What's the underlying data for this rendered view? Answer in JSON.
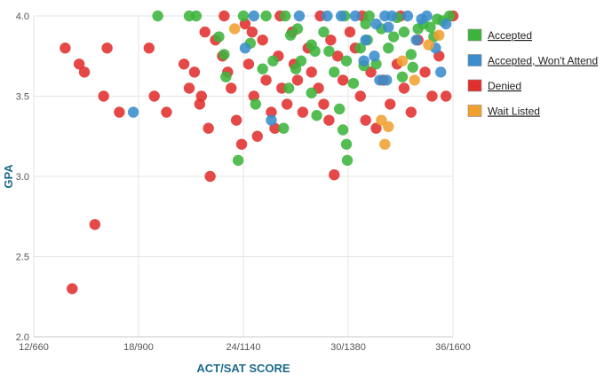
{
  "chart_data": {
    "type": "scatter",
    "xlabel": "ACT/SAT SCORE",
    "ylabel": "GPA",
    "xlim": [
      12,
      36
    ],
    "ylim": [
      2.0,
      4.0
    ],
    "x_ticks": [
      12,
      18,
      24,
      30,
      36
    ],
    "x_tick_labels": [
      "12/660",
      "18/900",
      "24/1140",
      "30/1380",
      "36/1600"
    ],
    "y_ticks": [
      2.0,
      2.5,
      3.0,
      3.5,
      4.0
    ],
    "y_tick_labels": [
      "2.0",
      "2.5",
      "3.0",
      "3.5",
      "4.0"
    ],
    "grid": true,
    "legend_position": "right",
    "series": [
      {
        "name": "Accepted",
        "color": "#3cb43c",
        "points": [
          [
            19.1,
            4.0
          ],
          [
            20.9,
            4.0
          ],
          [
            21.3,
            4.0
          ],
          [
            22.6,
            3.87
          ],
          [
            23.0,
            3.62
          ],
          [
            22.9,
            3.76
          ],
          [
            23.7,
            3.1
          ],
          [
            24.7,
            3.45
          ],
          [
            24.0,
            4.0
          ],
          [
            25.3,
            4.0
          ],
          [
            26.4,
            4.0
          ],
          [
            26.7,
            3.88
          ],
          [
            26.6,
            3.55
          ],
          [
            27.0,
            3.67
          ],
          [
            27.3,
            3.72
          ],
          [
            27.9,
            3.82
          ],
          [
            28.1,
            3.78
          ],
          [
            28.6,
            3.9
          ],
          [
            29.2,
            3.65
          ],
          [
            29.5,
            3.42
          ],
          [
            29.9,
            3.72
          ],
          [
            30.3,
            3.58
          ],
          [
            29.7,
            3.29
          ],
          [
            29.9,
            3.2
          ],
          [
            29.95,
            3.1
          ],
          [
            30.7,
            3.8
          ],
          [
            31.0,
            3.95
          ],
          [
            31.1,
            3.85
          ],
          [
            31.6,
            3.7
          ],
          [
            31.9,
            3.92
          ],
          [
            32.3,
            3.8
          ],
          [
            32.6,
            3.87
          ],
          [
            33.2,
            3.9
          ],
          [
            33.6,
            3.76
          ],
          [
            33.7,
            3.68
          ],
          [
            34.0,
            3.92
          ],
          [
            34.3,
            3.95
          ],
          [
            34.9,
            3.87
          ],
          [
            35.4,
            3.97
          ],
          [
            35.8,
            4.0
          ],
          [
            25.7,
            3.72
          ],
          [
            26.3,
            3.3
          ],
          [
            27.9,
            3.52
          ],
          [
            28.2,
            3.38
          ],
          [
            28.9,
            3.78
          ],
          [
            27.1,
            3.92
          ],
          [
            29.8,
            4.0
          ],
          [
            31.2,
            4.0
          ],
          [
            32.8,
            3.99
          ],
          [
            35.1,
            3.98
          ],
          [
            34.7,
            3.93
          ],
          [
            33.1,
            3.62
          ],
          [
            30.9,
            3.69
          ],
          [
            25.1,
            3.67
          ],
          [
            24.4,
            3.83
          ]
        ]
      },
      {
        "name": "Accepted, Won't Attend",
        "color": "#3a8ccc",
        "points": [
          [
            17.7,
            3.4
          ],
          [
            24.1,
            3.8
          ],
          [
            24.6,
            4.0
          ],
          [
            25.6,
            3.35
          ],
          [
            27.2,
            4.0
          ],
          [
            28.8,
            4.0
          ],
          [
            30.4,
            4.0
          ],
          [
            31.0,
            3.85
          ],
          [
            31.5,
            3.75
          ],
          [
            31.8,
            3.6
          ],
          [
            32.1,
            4.0
          ],
          [
            32.3,
            3.93
          ],
          [
            32.5,
            4.0
          ],
          [
            33.4,
            4.0
          ],
          [
            33.9,
            3.85
          ],
          [
            34.5,
            4.0
          ],
          [
            35.0,
            3.8
          ],
          [
            35.3,
            3.65
          ],
          [
            35.6,
            3.95
          ],
          [
            31.6,
            3.95
          ],
          [
            30.9,
            3.72
          ],
          [
            32.2,
            3.6
          ],
          [
            34.2,
            3.98
          ],
          [
            29.6,
            4.0
          ]
        ]
      },
      {
        "name": "Denied",
        "color": "#e0302e",
        "points": [
          [
            13.8,
            3.8
          ],
          [
            14.6,
            3.7
          ],
          [
            14.9,
            3.65
          ],
          [
            14.2,
            2.3
          ],
          [
            15.5,
            2.7
          ],
          [
            16.0,
            3.5
          ],
          [
            16.2,
            3.8
          ],
          [
            16.9,
            3.4
          ],
          [
            18.6,
            3.8
          ],
          [
            18.9,
            3.5
          ],
          [
            19.6,
            3.4
          ],
          [
            20.6,
            3.7
          ],
          [
            20.9,
            3.55
          ],
          [
            21.2,
            3.65
          ],
          [
            21.8,
            3.9
          ],
          [
            21.6,
            3.5
          ],
          [
            21.5,
            3.45
          ],
          [
            22.0,
            3.3
          ],
          [
            22.1,
            3.0
          ],
          [
            22.4,
            3.85
          ],
          [
            22.8,
            3.75
          ],
          [
            23.1,
            3.65
          ],
          [
            23.3,
            3.55
          ],
          [
            23.6,
            3.35
          ],
          [
            23.9,
            3.2
          ],
          [
            24.1,
            3.95
          ],
          [
            24.3,
            3.7
          ],
          [
            24.6,
            3.5
          ],
          [
            24.8,
            3.25
          ],
          [
            25.1,
            3.85
          ],
          [
            25.3,
            3.6
          ],
          [
            25.6,
            3.4
          ],
          [
            25.8,
            3.3
          ],
          [
            26.0,
            3.75
          ],
          [
            26.2,
            3.55
          ],
          [
            26.5,
            3.45
          ],
          [
            26.8,
            3.9
          ],
          [
            27.1,
            3.6
          ],
          [
            27.4,
            3.4
          ],
          [
            27.7,
            3.8
          ],
          [
            27.9,
            3.65
          ],
          [
            28.3,
            3.55
          ],
          [
            28.6,
            3.45
          ],
          [
            28.9,
            3.35
          ],
          [
            29.2,
            3.01
          ],
          [
            29.4,
            3.75
          ],
          [
            29.7,
            3.6
          ],
          [
            30.1,
            3.9
          ],
          [
            30.4,
            3.8
          ],
          [
            30.7,
            3.5
          ],
          [
            31.0,
            3.35
          ],
          [
            31.3,
            3.65
          ],
          [
            31.6,
            3.3
          ],
          [
            32.0,
            3.6
          ],
          [
            32.4,
            3.45
          ],
          [
            32.8,
            3.7
          ],
          [
            33.2,
            3.55
          ],
          [
            33.6,
            3.4
          ],
          [
            34.0,
            3.85
          ],
          [
            34.4,
            3.65
          ],
          [
            34.8,
            3.5
          ],
          [
            35.2,
            3.75
          ],
          [
            35.6,
            3.5
          ],
          [
            36.0,
            4.0
          ],
          [
            22.9,
            4.0
          ],
          [
            26.1,
            4.0
          ],
          [
            28.4,
            4.0
          ],
          [
            30.8,
            4.0
          ],
          [
            33.0,
            4.0
          ],
          [
            24.5,
            3.9
          ],
          [
            26.9,
            3.7
          ],
          [
            29.0,
            3.85
          ]
        ]
      },
      {
        "name": "Wait Listed",
        "color": "#f0a030",
        "points": [
          [
            23.5,
            3.92
          ],
          [
            32.1,
            3.2
          ],
          [
            32.3,
            3.31
          ],
          [
            33.8,
            3.6
          ],
          [
            34.6,
            3.82
          ],
          [
            33.1,
            3.72
          ],
          [
            31.9,
            3.35
          ],
          [
            35.2,
            3.88
          ]
        ]
      }
    ]
  }
}
